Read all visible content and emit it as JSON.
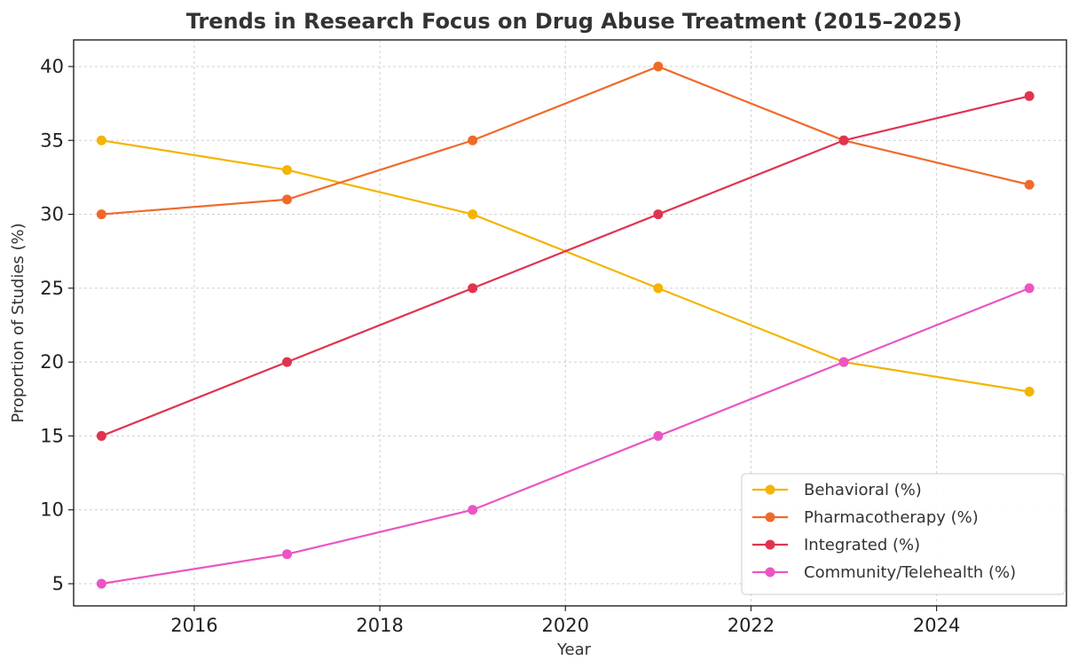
{
  "chart_data": {
    "type": "line",
    "title": "Trends in Research Focus on Drug Abuse Treatment (2015–2025)",
    "xlabel": "Year",
    "ylabel": "Proportion of Studies (%)",
    "x": [
      2015,
      2017,
      2019,
      2021,
      2023,
      2025
    ],
    "xlim": [
      2014.7,
      2025.4
    ],
    "ylim": [
      3.5,
      41.8
    ],
    "xticks": [
      2016,
      2018,
      2020,
      2022,
      2024
    ],
    "yticks": [
      5,
      10,
      15,
      20,
      25,
      30,
      35,
      40
    ],
    "grid": true,
    "legend_position": "lower-right",
    "series": [
      {
        "name": "Behavioral (%)",
        "color": "#f4b400",
        "values": [
          35,
          33,
          30,
          25,
          20,
          18
        ]
      },
      {
        "name": "Pharmacotherapy (%)",
        "color": "#ef6a2a",
        "values": [
          30,
          31,
          35,
          40,
          35,
          32
        ]
      },
      {
        "name": "Integrated (%)",
        "color": "#e0334f",
        "values": [
          15,
          20,
          25,
          30,
          35,
          38
        ]
      },
      {
        "name": "Community/Telehealth (%)",
        "color": "#ea55c3",
        "values": [
          5,
          7,
          10,
          15,
          20,
          25
        ]
      }
    ]
  }
}
